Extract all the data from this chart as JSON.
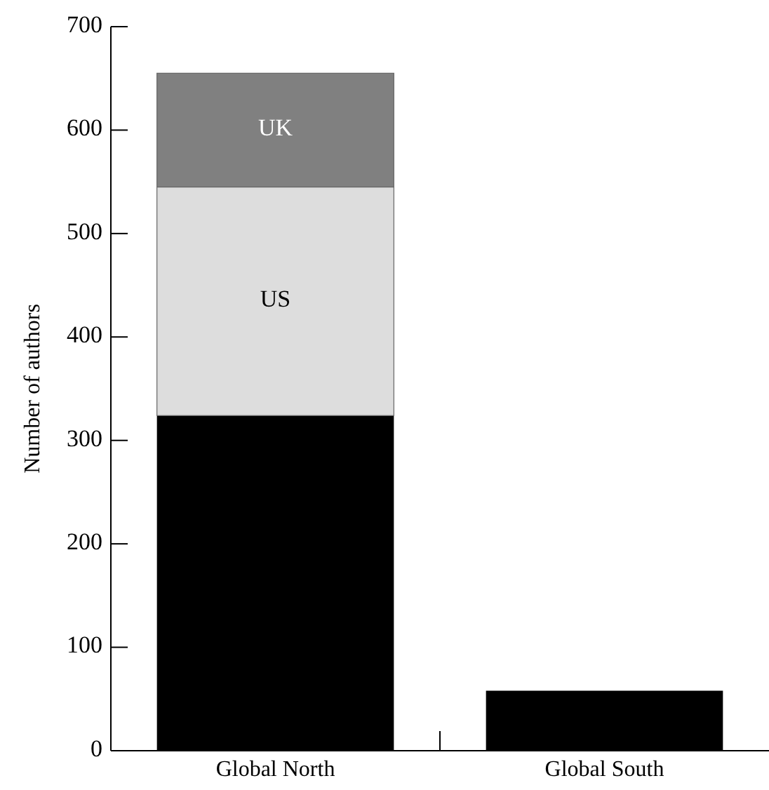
{
  "chart_data": {
    "type": "bar",
    "stacked": true,
    "categories": [
      "Global North",
      "Global South"
    ],
    "ylabel": "Number of authors",
    "ylim": [
      0,
      700
    ],
    "yticks": [
      0,
      100,
      200,
      300,
      400,
      500,
      600,
      700
    ],
    "grid": false,
    "series": [
      {
        "color": "#000000",
        "values": [
          324,
          58
        ]
      },
      {
        "name": "US",
        "color": "#dddddd",
        "values": [
          221,
          0
        ]
      },
      {
        "name": "UK",
        "color": "#808080",
        "values": [
          110,
          0
        ]
      }
    ]
  }
}
